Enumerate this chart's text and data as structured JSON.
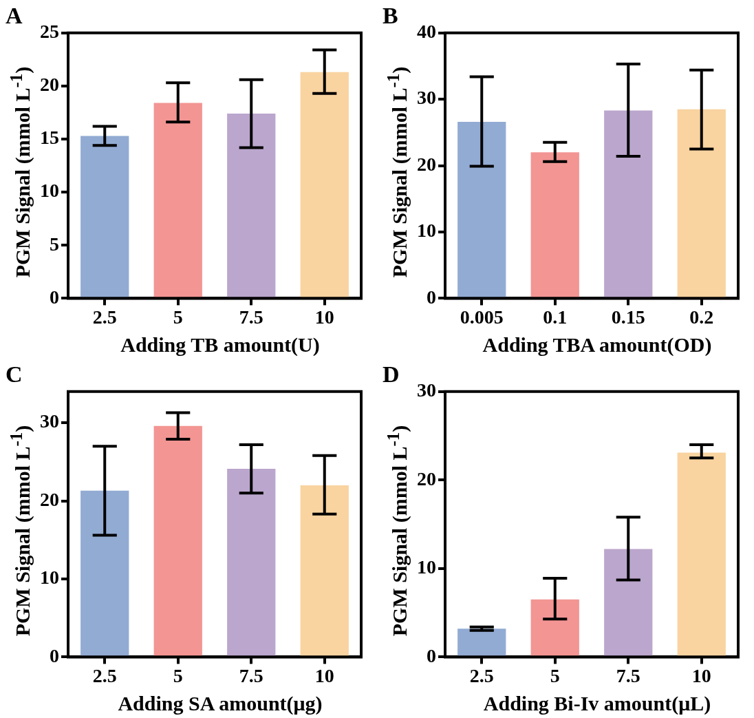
{
  "chart_data": [
    {
      "type": "bar",
      "title": "A",
      "xlabel": "Adding TB amount(U)",
      "ylabel": "PGM Signal  (mmol L$^{-1}$)",
      "categories": [
        "2.5",
        "5",
        "7.5",
        "10"
      ],
      "values": [
        15.3,
        18.4,
        17.4,
        21.3
      ],
      "colors": [
        "#92abd3",
        "#f39593",
        "#bba6cd",
        "#f9d3a0"
      ],
      "errors": [
        [
          14.4,
          16.2
        ],
        [
          16.6,
          20.3
        ],
        [
          14.2,
          20.6
        ],
        [
          19.3,
          23.4
        ]
      ],
      "ylim": [
        0,
        25
      ],
      "yticks": [
        0,
        5,
        10,
        15,
        20,
        25
      ],
      "grid": false,
      "legend": false
    },
    {
      "type": "bar",
      "title": "B",
      "xlabel": "Adding TBA amount(OD)",
      "ylabel": "PGM Signal  (mmol L$^{-1}$)",
      "categories": [
        "0.005",
        "0.1",
        "0.15",
        "0.2"
      ],
      "values": [
        26.6,
        22.0,
        28.3,
        28.5
      ],
      "colors": [
        "#92abd3",
        "#f39593",
        "#bba6cd",
        "#f9d3a0"
      ],
      "errors": [
        [
          19.9,
          33.4
        ],
        [
          20.6,
          23.5
        ],
        [
          21.4,
          35.3
        ],
        [
          22.5,
          34.4
        ]
      ],
      "ylim": [
        0,
        40
      ],
      "yticks": [
        0,
        10,
        20,
        30,
        40
      ],
      "grid": false,
      "legend": false
    },
    {
      "type": "bar",
      "title": "C",
      "xlabel": "Adding SA amount(μg)",
      "ylabel": "PGM Signal  (mmol L$^{-1}$)",
      "categories": [
        "2.5",
        "5",
        "7.5",
        "10"
      ],
      "values": [
        21.3,
        29.6,
        24.1,
        22.0
      ],
      "colors": [
        "#92abd3",
        "#f39593",
        "#bba6cd",
        "#f9d3a0"
      ],
      "errors": [
        [
          15.6,
          27.0
        ],
        [
          27.9,
          31.3
        ],
        [
          21.0,
          27.2
        ],
        [
          18.3,
          25.8
        ]
      ],
      "ylim": [
        0,
        34
      ],
      "yticks": [
        0,
        10,
        20,
        30
      ],
      "grid": false,
      "legend": false
    },
    {
      "type": "bar",
      "title": "D",
      "xlabel": "Adding Bi-Iv amount(μL)",
      "ylabel": "PGM Signal  (mmol L$^{-1}$)",
      "categories": [
        "2.5",
        "5",
        "7.5",
        "10"
      ],
      "values": [
        3.2,
        6.5,
        12.2,
        23.1
      ],
      "colors": [
        "#92abd3",
        "#f39593",
        "#bba6cd",
        "#f9d3a0"
      ],
      "errors": [
        [
          3.0,
          3.4
        ],
        [
          4.3,
          8.9
        ],
        [
          8.7,
          15.8
        ],
        [
          22.5,
          24.0
        ]
      ],
      "ylim": [
        0,
        30
      ],
      "yticks": [
        0,
        10,
        20,
        30
      ],
      "grid": false,
      "legend": false
    }
  ]
}
